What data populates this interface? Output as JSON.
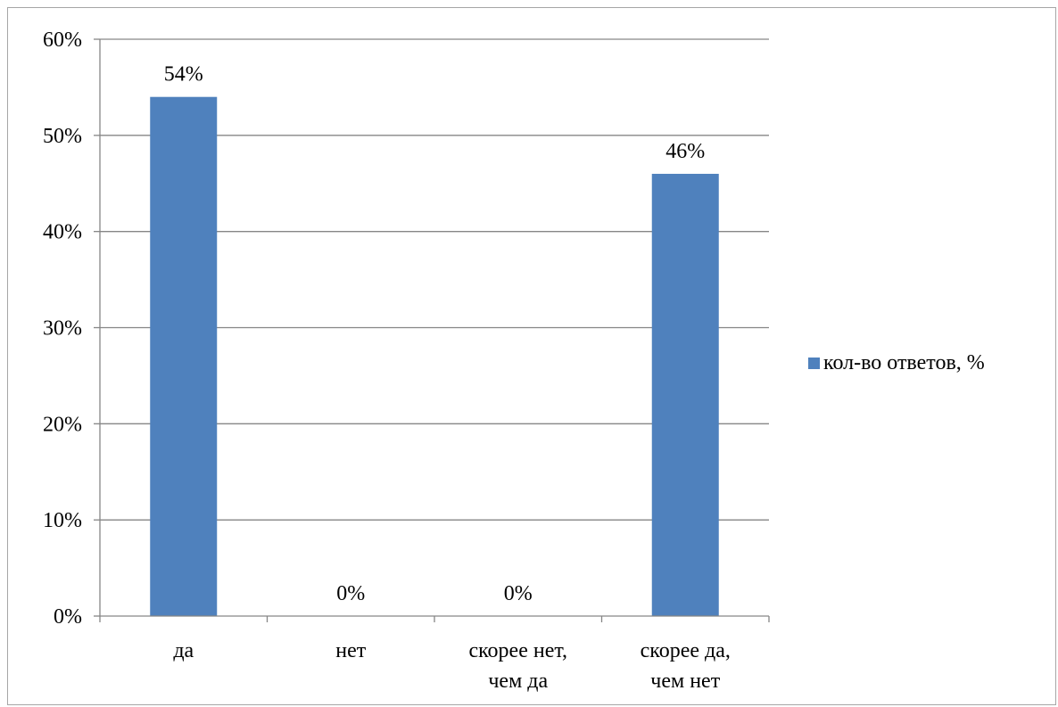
{
  "chart_data": {
    "type": "bar",
    "categories": [
      [
        "да"
      ],
      [
        "нет"
      ],
      [
        "скорее нет,",
        "чем да"
      ],
      [
        "скорее да,",
        "чем нет"
      ]
    ],
    "series": [
      {
        "name": "кол-во ответов, %",
        "values": [
          54,
          0,
          0,
          46
        ],
        "data_labels": [
          "54%",
          "0%",
          "0%",
          "46%"
        ],
        "color": "#4f81bd"
      }
    ],
    "ylim": [
      0,
      60
    ],
    "y_ticks": [
      {
        "value": 0,
        "label": "0%"
      },
      {
        "value": 10,
        "label": "10%"
      },
      {
        "value": 20,
        "label": "20%"
      },
      {
        "value": 30,
        "label": "30%"
      },
      {
        "value": 40,
        "label": "40%"
      },
      {
        "value": 50,
        "label": "50%"
      },
      {
        "value": 60,
        "label": "60%"
      }
    ],
    "title": "",
    "xlabel": "",
    "ylabel": "",
    "grid": true,
    "gridline_color": "#868686",
    "legend_position": "right"
  }
}
